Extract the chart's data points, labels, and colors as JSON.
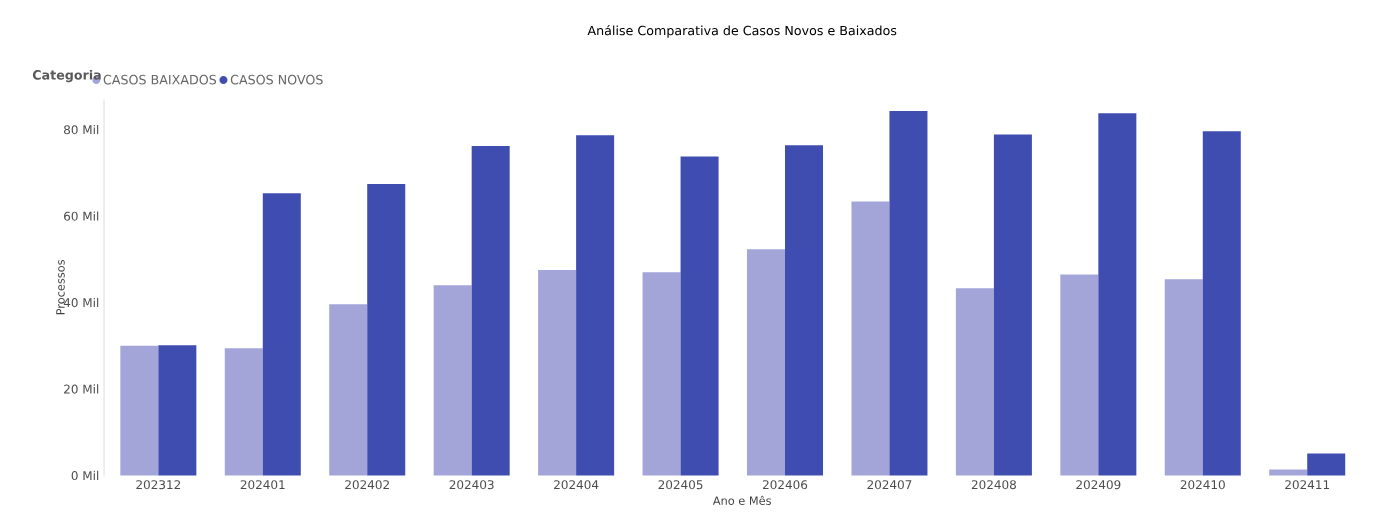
{
  "chart_data": {
    "type": "bar",
    "title": "Análise Comparativa de Casos Novos e Baixados",
    "xlabel": "Ano e Mês",
    "ylabel": "Processos",
    "legend_title": "Categoria",
    "legend": "top left",
    "categories": [
      "202312",
      "202401",
      "202402",
      "202403",
      "202404",
      "202405",
      "202406",
      "202407",
      "202408",
      "202409",
      "202410",
      "202411"
    ],
    "series": [
      {
        "name": "CASOS BAIXADOS",
        "color": "#a3a5d8",
        "values": [
          30,
          29.4,
          39.6,
          44,
          47.5,
          47,
          52.3,
          63.4,
          43.3,
          46.5,
          45.4,
          1.4
        ]
      },
      {
        "name": "CASOS NOVOS",
        "color": "#3f4db0",
        "values": [
          30.1,
          65.3,
          67.4,
          76.2,
          78.7,
          73.8,
          76.4,
          84.3,
          78.9,
          83.8,
          79.6,
          5.1
        ]
      }
    ],
    "ylim": [
      0,
      87
    ],
    "yticks": [
      {
        "value": 0,
        "label": "0 Mil"
      },
      {
        "value": 20,
        "label": "20 Mil"
      },
      {
        "value": 40,
        "label": "40 Mil"
      },
      {
        "value": 60,
        "label": "60 Mil"
      },
      {
        "value": 80,
        "label": "80 Mil"
      }
    ]
  }
}
